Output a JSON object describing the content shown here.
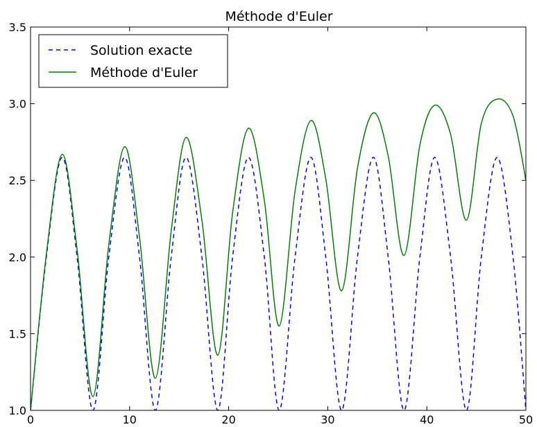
{
  "chart_data": {
    "type": "line",
    "title": "Méthode d'Euler",
    "xlabel": "",
    "ylabel": "",
    "xlim": [
      0,
      50
    ],
    "ylim": [
      1.0,
      3.5
    ],
    "x_ticks": [
      0,
      10,
      20,
      30,
      40,
      50
    ],
    "x_tick_labels": [
      "0",
      "10",
      "20",
      "30",
      "40",
      "50"
    ],
    "y_ticks": [
      1.0,
      1.5,
      2.0,
      2.5,
      3.0,
      3.5
    ],
    "y_tick_labels": [
      "1.0",
      "1.5",
      "2.0",
      "2.5",
      "3.0",
      "3.5"
    ],
    "grid": false,
    "legend": {
      "placement": "top-left"
    },
    "series": [
      {
        "name": "Solution exacte",
        "color": "#0000ff",
        "style": "dashed",
        "x": [
          0,
          1.6,
          3.2,
          4.7,
          6.3,
          7.9,
          9.5,
          11.0,
          12.6,
          14.2,
          15.7,
          17.3,
          18.9,
          20.4,
          22.0,
          23.6,
          25.1,
          26.7,
          28.3,
          29.8,
          31.4,
          33.0,
          34.6,
          36.1,
          37.7,
          39.3,
          40.8,
          42.4,
          44.0,
          45.5,
          47.1,
          48.7,
          50.0
        ],
        "y": [
          1.0,
          2.0,
          2.65,
          2.0,
          1.0,
          2.0,
          2.65,
          2.0,
          1.0,
          2.0,
          2.65,
          2.0,
          1.0,
          2.0,
          2.65,
          2.0,
          1.0,
          2.0,
          2.65,
          2.0,
          1.0,
          2.0,
          2.65,
          2.0,
          1.0,
          2.0,
          2.65,
          2.0,
          1.0,
          2.0,
          2.65,
          2.0,
          1.0
        ]
      },
      {
        "name": "Méthode d'Euler",
        "color": "#008000",
        "style": "solid",
        "x": [
          0,
          1.6,
          3.2,
          4.7,
          6.3,
          7.9,
          9.5,
          11.0,
          12.6,
          14.2,
          15.7,
          17.3,
          18.9,
          20.4,
          22.0,
          23.6,
          25.1,
          26.7,
          28.3,
          29.8,
          31.4,
          33.0,
          34.6,
          36.1,
          37.7,
          39.3,
          40.8,
          42.4,
          44.0,
          45.5,
          47.1,
          48.7,
          50.0
        ],
        "y": [
          1.0,
          2.02,
          2.67,
          2.05,
          1.09,
          2.08,
          2.72,
          2.13,
          1.21,
          2.17,
          2.78,
          2.24,
          1.36,
          2.29,
          2.84,
          2.37,
          1.55,
          2.43,
          2.89,
          2.51,
          1.78,
          2.58,
          2.94,
          2.66,
          2.01,
          2.73,
          2.99,
          2.8,
          2.24,
          2.87,
          3.03,
          2.92,
          2.5
        ]
      }
    ]
  }
}
